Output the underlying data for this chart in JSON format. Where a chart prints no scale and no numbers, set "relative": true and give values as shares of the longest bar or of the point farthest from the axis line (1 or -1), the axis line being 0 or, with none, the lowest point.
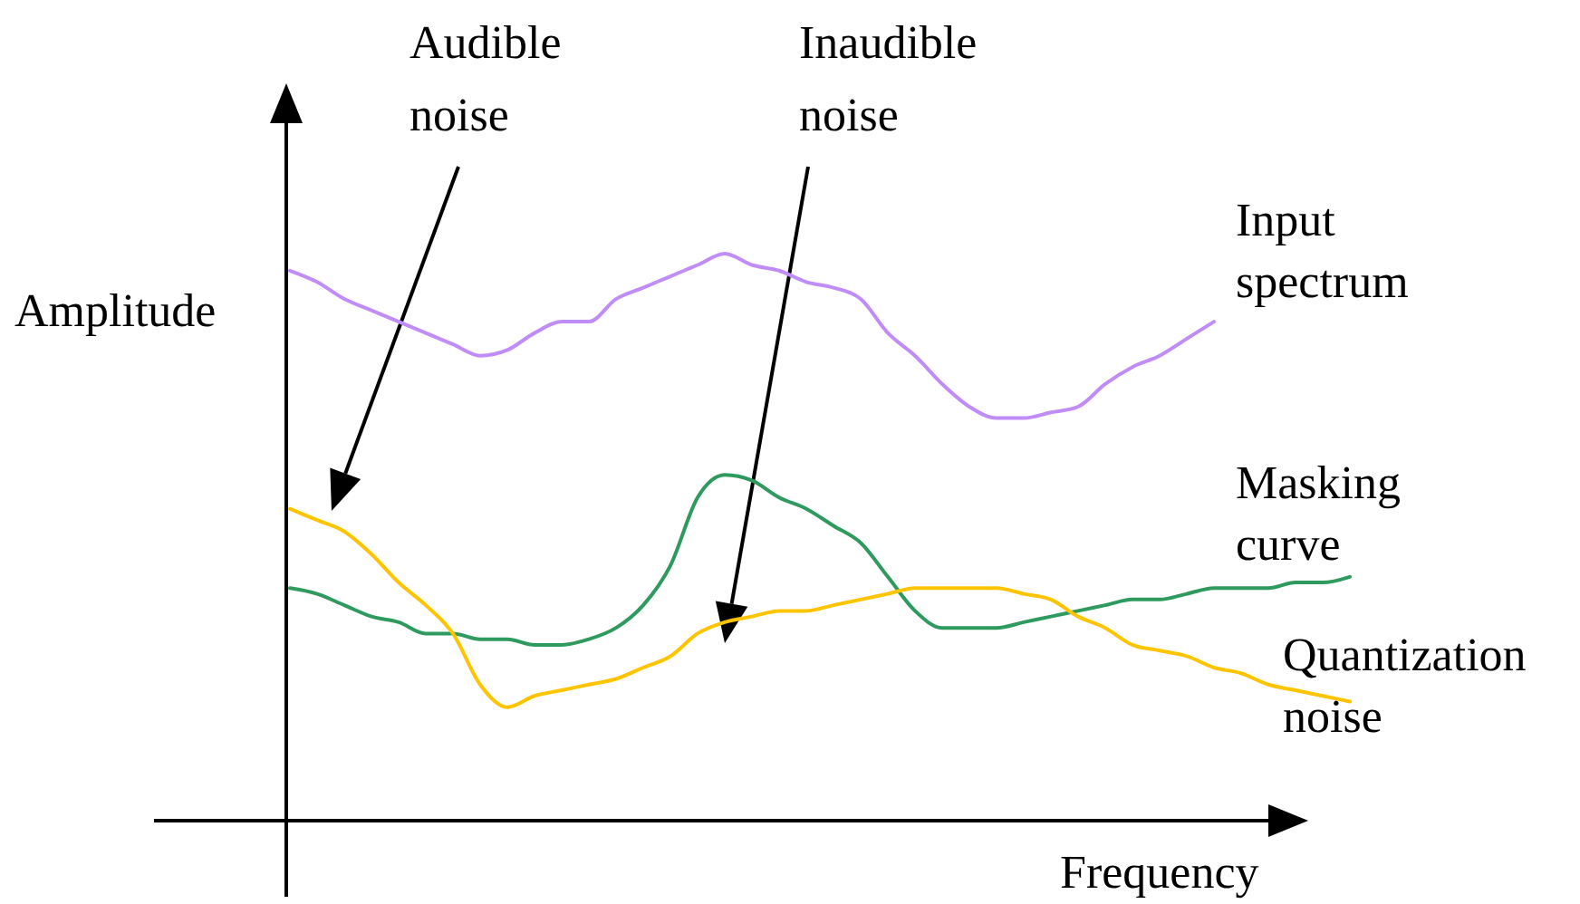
{
  "chart_data": {
    "type": "line",
    "relative": true,
    "xlabel": "Frequency",
    "ylabel": "Amplitude",
    "marker": "none",
    "line_style": "solid",
    "categories": [
      null,
      null,
      null,
      null,
      null,
      null,
      null,
      null,
      null,
      null,
      null,
      null,
      null,
      null,
      null,
      null,
      null,
      null,
      null,
      null,
      null,
      null,
      null,
      null,
      null,
      null,
      null,
      null,
      null,
      null,
      null,
      null,
      null,
      null,
      null,
      null,
      null,
      null,
      null,
      null
    ],
    "series": [
      {
        "name": "Input spectrum",
        "color": "#c08cf8",
        "values": [
          0.97,
          0.95,
          0.92,
          0.9,
          0.88,
          0.86,
          0.84,
          0.82,
          0.83,
          0.86,
          0.88,
          0.88,
          0.92,
          0.94,
          0.96,
          0.98,
          1,
          0.98,
          0.97,
          0.95,
          0.94,
          0.92,
          0.86,
          0.82,
          0.77,
          0.73,
          0.71,
          0.71,
          0.72,
          0.73,
          0.77,
          0.8,
          0.82,
          0.85,
          0.88,
          null,
          null,
          null,
          null,
          null
        ]
      },
      {
        "name": "Masking curve",
        "color": "#2e9a5e",
        "values": [
          0.41,
          0.4,
          0.38,
          0.36,
          0.35,
          0.33,
          0.33,
          0.32,
          0.32,
          0.31,
          0.31,
          0.32,
          0.34,
          0.38,
          0.45,
          0.57,
          0.61,
          0.6,
          0.57,
          0.55,
          0.52,
          0.49,
          0.43,
          0.37,
          0.34,
          0.34,
          0.34,
          0.35,
          0.36,
          0.37,
          0.38,
          0.39,
          0.39,
          0.4,
          0.41,
          0.41,
          0.41,
          0.42,
          0.42,
          0.43
        ]
      },
      {
        "name": "Quantization noise",
        "color": "#ffc400",
        "values": [
          0.55,
          0.53,
          0.51,
          0.47,
          0.42,
          0.38,
          0.33,
          0.24,
          0.2,
          0.22,
          0.23,
          0.24,
          0.25,
          0.27,
          0.29,
          0.33,
          0.35,
          0.36,
          0.37,
          0.37,
          0.38,
          0.39,
          0.4,
          0.41,
          0.41,
          0.41,
          0.41,
          0.4,
          0.39,
          0.36,
          0.34,
          0.31,
          0.3,
          0.29,
          0.27,
          0.26,
          0.24,
          0.23,
          0.22,
          0.21
        ]
      }
    ],
    "annotations": [
      "Audible noise",
      "Inaudible noise"
    ]
  }
}
